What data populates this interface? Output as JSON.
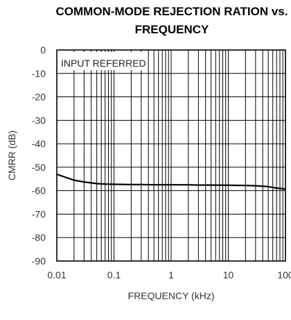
{
  "chart_data": {
    "type": "line",
    "title_lines": [
      "COMMON-MODE REJECTION RATION vs.",
      "FREQUENCY"
    ],
    "xlabel": "FREQUENCY (kHz)",
    "ylabel": "CMRR (dB)",
    "x_scale": "log",
    "xlim": [
      0.01,
      100
    ],
    "ylim": [
      -90,
      0
    ],
    "x_ticks": [
      "0.01",
      "0.1",
      "1",
      "10",
      "100"
    ],
    "y_ticks": [
      "0",
      "-10",
      "-20",
      "-30",
      "-40",
      "-50",
      "-60",
      "-70",
      "-80",
      "-90"
    ],
    "grid": true,
    "annotation": "INPUT REFERRED",
    "series": [
      {
        "x": [
          0.01,
          0.015,
          0.02,
          0.03,
          0.05,
          0.07,
          0.1,
          0.2,
          0.3,
          0.5,
          1,
          2,
          3,
          5,
          10,
          20,
          30,
          50,
          70,
          100
        ],
        "y": [
          -53.0,
          -54.5,
          -55.5,
          -56.3,
          -57.0,
          -57.2,
          -57.3,
          -57.4,
          -57.4,
          -57.5,
          -57.5,
          -57.5,
          -57.6,
          -57.6,
          -57.7,
          -57.8,
          -57.9,
          -58.3,
          -58.9,
          -59.3
        ]
      }
    ]
  }
}
